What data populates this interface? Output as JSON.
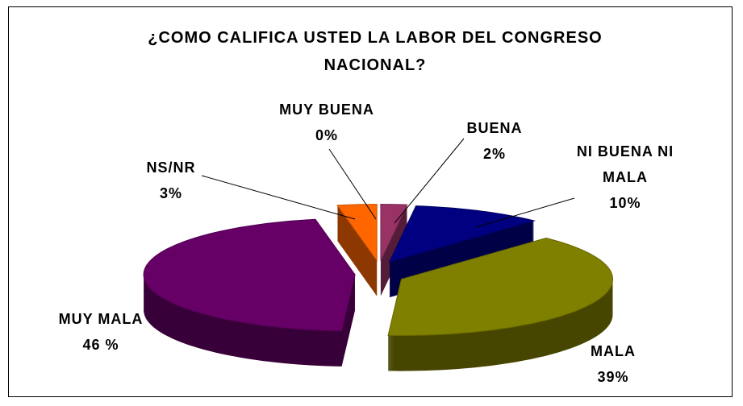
{
  "chart_data": {
    "type": "pie",
    "title": "¿COMO CALIFICA USTED LA LABOR DEL CONGRESO NACIONAL?",
    "categories": [
      "MUY BUENA",
      "BUENA",
      "NI BUENA NI MALA",
      "MALA",
      "MUY MALA",
      "NS/NR"
    ],
    "values": [
      0,
      2,
      10,
      39,
      46,
      3
    ],
    "value_labels": [
      "0%",
      "2%",
      "10%",
      "39%",
      "46 %",
      "3%"
    ],
    "colors": [
      "#f0f0f0",
      "#993366",
      "#000080",
      "#808000",
      "#660066",
      "#ff6600"
    ]
  }
}
